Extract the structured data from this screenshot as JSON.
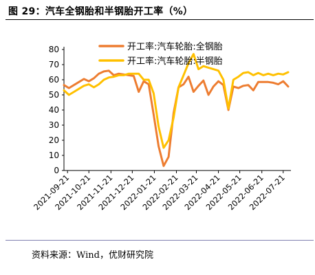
{
  "title": "图 29：汽车全钢胎和半钢胎开工率（%）",
  "source": "资料来源：Wind，优财研究院",
  "chart_data": {
    "type": "line",
    "x_ticks": [
      "2021-09-21",
      "2021-10-21",
      "2021-11-21",
      "2021-12-21",
      "2022-01-21",
      "2022-02-21",
      "2022-03-21",
      "2022-04-21",
      "2022-05-21",
      "2022-06-21",
      "2022-07-21"
    ],
    "yticks": [
      0,
      10,
      20,
      30,
      40,
      50,
      60,
      70,
      80
    ],
    "ylim": [
      0,
      80
    ],
    "grid": false,
    "legend_position": "top-right",
    "x": [
      "2021-09-16",
      "2021-09-23",
      "2021-09-30",
      "2021-10-07",
      "2021-10-14",
      "2021-10-21",
      "2021-10-28",
      "2021-11-04",
      "2021-11-11",
      "2021-11-18",
      "2021-11-25",
      "2021-12-02",
      "2021-12-09",
      "2021-12-16",
      "2021-12-23",
      "2021-12-30",
      "2022-01-06",
      "2022-01-13",
      "2022-01-20",
      "2022-01-27",
      "2022-02-03",
      "2022-02-10",
      "2022-02-17",
      "2022-02-24",
      "2022-03-03",
      "2022-03-10",
      "2022-03-17",
      "2022-03-24",
      "2022-03-31",
      "2022-04-07",
      "2022-04-14",
      "2022-04-21",
      "2022-04-28",
      "2022-05-05",
      "2022-05-12",
      "2022-05-19",
      "2022-05-26",
      "2022-06-02",
      "2022-06-09",
      "2022-06-16",
      "2022-06-23",
      "2022-06-30",
      "2022-07-07",
      "2022-07-14",
      "2022-07-21",
      "2022-07-28"
    ],
    "series": [
      {
        "name": "开工率:汽车轮胎:全钢胎",
        "color": "#ED7D31",
        "values": [
          56.5,
          54.5,
          56.5,
          58.5,
          60.5,
          59,
          61,
          64,
          65.5,
          66,
          63,
          64,
          63.5,
          63,
          62.5,
          52,
          59,
          57,
          37,
          16,
          3,
          9,
          38,
          55,
          57,
          62,
          52,
          56,
          59.5,
          50,
          55.5,
          59,
          56.5,
          40,
          55.5,
          54.5,
          56,
          56.5,
          53,
          58.5,
          58.5,
          58.5,
          58,
          57,
          59,
          55.5
        ]
      },
      {
        "name": "开工率:汽车轮胎:半钢胎",
        "color": "#FFC000",
        "values": [
          53,
          50,
          52,
          54,
          56,
          57,
          55,
          57,
          60,
          61.5,
          62,
          63,
          63,
          64,
          64,
          64,
          60,
          60,
          51,
          29,
          15,
          20,
          35,
          55,
          63,
          71,
          77,
          67,
          69,
          68,
          67,
          66,
          60,
          41,
          60,
          62,
          64.5,
          65,
          63,
          64.5,
          63,
          64,
          63,
          64,
          63.5,
          65
        ]
      }
    ]
  }
}
